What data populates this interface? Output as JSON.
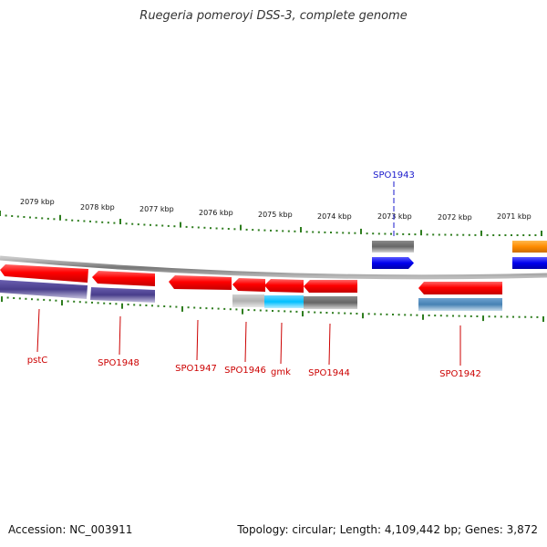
{
  "title": "Ruegeria pomeroyi DSS-3, complete genome",
  "accession": "Accession: NC_003911",
  "summary": "Topology: circular; Length: 4,109,442 bp; Genes: 3,872",
  "colors": {
    "backbone": "#8a8a8a",
    "tick": "#2e7d1e",
    "gene_label": "#cc0000",
    "highlight_label": "#1a1acc",
    "cds_red": "#ff0000",
    "blue": "#0000ee",
    "orange": "#ff8c00",
    "purple": "#483d8b",
    "steel": "#4682b4",
    "cyan": "#00bfff",
    "gray": "#666666",
    "light_gray": "#b8b8b8"
  },
  "scale_ticks": [
    "2079 kbp",
    "2078 kbp",
    "2077 kbp",
    "2076 kbp",
    "2075 kbp",
    "2074 kbp",
    "2073 kbp",
    "2072 kbp",
    "2071 kbp"
  ],
  "gene_labels": [
    "pstC",
    "SPO1948",
    "SPO1947",
    "SPO1946",
    "gmk",
    "SPO1944",
    "SPO1942"
  ],
  "highlight_label": "SPO1943"
}
